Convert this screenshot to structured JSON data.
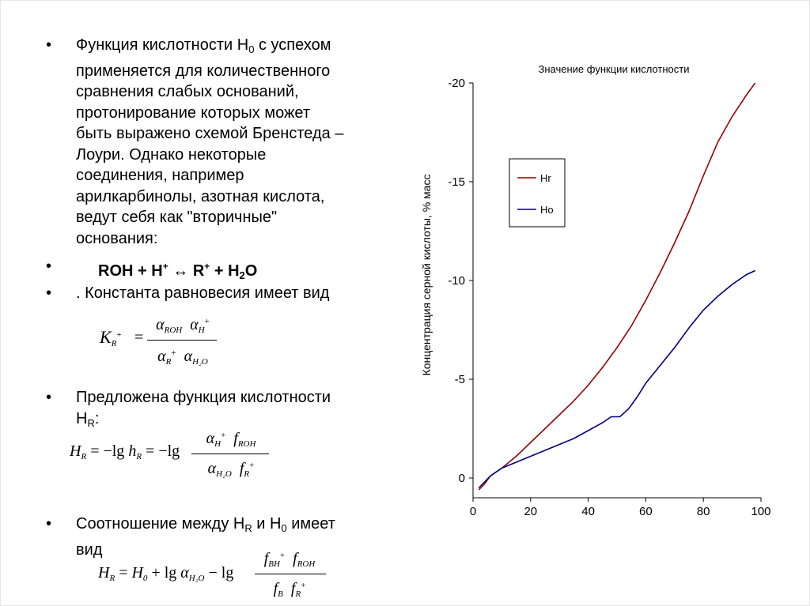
{
  "bullets": {
    "glyph": "•",
    "b1": {
      "part1": "Функция кислотности H",
      "sub0": "0",
      "part2": "  с успехом",
      "lines": [
        "применяется для количественного",
        "сравнения слабых оснований,",
        "протонирование которых может",
        "быть выражено схемой Бренстеда –",
        "Лоури. Однако некоторые",
        "соединения, например",
        "арилкарбинолы, азотная кислота,",
        "ведут себя как \"вторичные\"",
        "основания:"
      ]
    },
    "b2": {
      "roh": "ROH + H",
      "plus1": "+",
      "arrow": " ↔ R",
      "plus2": "+",
      "plus_h": " + H",
      "sub2": "2",
      "o": "O"
    },
    "b3": {
      "text": ". Константа равновесия имеет вид"
    },
    "b4": {
      "line1": "Предложена функция кислотности",
      "h": "H",
      "sub_r": "R",
      "colon": ":"
    },
    "b5": {
      "part1": "Соотношение между H",
      "sub_r": "R",
      "mid": " и H",
      "sub0": "0",
      "part2": " имеет",
      "line2": "вид"
    }
  },
  "formula_k": {
    "k": "K",
    "k_sub": "R",
    "k_sup": "+",
    "eq": "=",
    "num_a1": "α",
    "num_s1": "ROH",
    "num_a2": "α",
    "num_s2": "H",
    "num_sup2": "+",
    "den_a1": "α",
    "den_s1": "R",
    "den_sup1": "+",
    "den_a2": "α",
    "den_s2": "H₂O"
  },
  "formula_hr": {
    "h": "H",
    "h_sub": "R",
    "eq1": "= −lg",
    "hh": "h",
    "hh_sub": "R",
    "eq2": "= −lg",
    "num_a": "α",
    "num_as": "H",
    "num_asup": "+",
    "num_f": "f",
    "num_fs": "ROH",
    "den_a": "α",
    "den_as": "H₂O",
    "den_f": "f",
    "den_fs": "R",
    "den_fsup": "+"
  },
  "formula_rel": {
    "h": "H",
    "h_sub": "R",
    "eq": "=",
    "h0": "H",
    "h0_sub": "0",
    "plus_lg": "+ lg",
    "a": "α",
    "a_sub": "H₂O",
    "minus_lg": "− lg",
    "num_f1": "f",
    "num_f1s": "BH",
    "num_f1sup": "+",
    "num_f2": "f",
    "num_f2s": "ROH",
    "den_f1": "f",
    "den_f1s": "B",
    "den_f2": "f",
    "den_f2s": "R",
    "den_f2sup": "+"
  },
  "chart_data": {
    "type": "line",
    "title": "Значение функции кислотности",
    "xlabel": "",
    "ylabel": "Концентрация серной кислоты, % масс",
    "xlim": [
      0,
      100
    ],
    "ylim": [
      1,
      -20
    ],
    "x_ticks": [
      0,
      20,
      40,
      60,
      80,
      100
    ],
    "y_ticks": [
      -20,
      -15,
      -10,
      -5,
      0
    ],
    "legend_position": "top-left",
    "grid": false,
    "series": [
      {
        "name": "Hr",
        "color": "#990000",
        "points": [
          [
            2,
            0.6
          ],
          [
            4,
            0.3
          ],
          [
            6,
            -0.1
          ],
          [
            10,
            -0.5
          ],
          [
            15,
            -1.1
          ],
          [
            20,
            -1.8
          ],
          [
            25,
            -2.5
          ],
          [
            30,
            -3.2
          ],
          [
            35,
            -3.9
          ],
          [
            40,
            -4.7
          ],
          [
            45,
            -5.6
          ],
          [
            50,
            -6.6
          ],
          [
            55,
            -7.7
          ],
          [
            60,
            -9.0
          ],
          [
            65,
            -10.4
          ],
          [
            70,
            -11.9
          ],
          [
            75,
            -13.5
          ],
          [
            80,
            -15.3
          ],
          [
            85,
            -17.0
          ],
          [
            90,
            -18.3
          ],
          [
            95,
            -19.4
          ],
          [
            98,
            -20.0
          ]
        ]
      },
      {
        "name": "Ho",
        "color": "#000080",
        "points": [
          [
            2,
            0.5
          ],
          [
            4,
            0.2
          ],
          [
            6,
            -0.1
          ],
          [
            10,
            -0.5
          ],
          [
            15,
            -0.8
          ],
          [
            20,
            -1.1
          ],
          [
            25,
            -1.4
          ],
          [
            30,
            -1.7
          ],
          [
            35,
            -2.0
          ],
          [
            40,
            -2.4
          ],
          [
            45,
            -2.8
          ],
          [
            48,
            -3.1
          ],
          [
            51,
            -3.1
          ],
          [
            54,
            -3.5
          ],
          [
            57,
            -4.1
          ],
          [
            60,
            -4.8
          ],
          [
            65,
            -5.7
          ],
          [
            70,
            -6.6
          ],
          [
            75,
            -7.6
          ],
          [
            80,
            -8.5
          ],
          [
            85,
            -9.2
          ],
          [
            90,
            -9.8
          ],
          [
            95,
            -10.3
          ],
          [
            98,
            -10.5
          ]
        ]
      }
    ]
  }
}
